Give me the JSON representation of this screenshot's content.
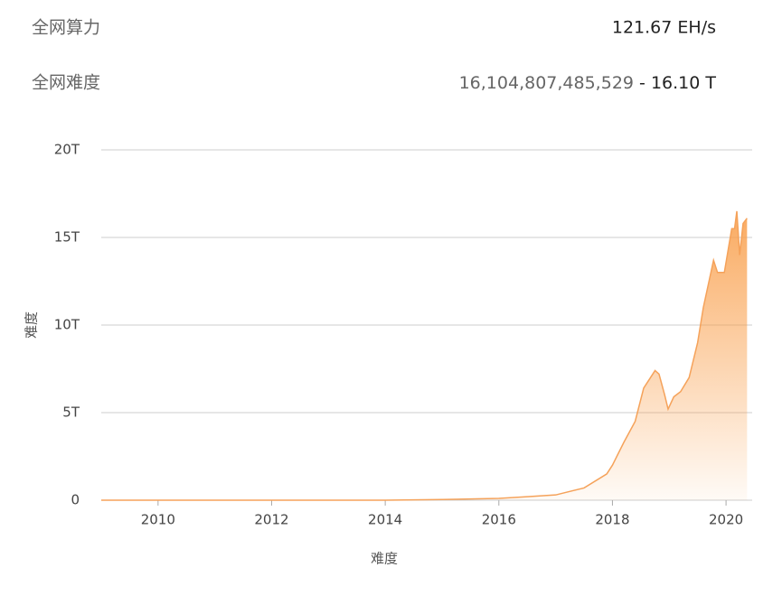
{
  "stats": [
    {
      "label": "全网算力",
      "value": "121.67 EH/s"
    },
    {
      "label": "全网难度",
      "value": "16,104,807,485,529",
      "separator": "-",
      "suffix": "16.10 T"
    }
  ],
  "chart_data": {
    "type": "area",
    "xlabel": "难度",
    "ylabel": "难度",
    "x": [
      2009,
      2011,
      2013,
      2014,
      2015,
      2016,
      2016.5,
      2017,
      2017.5,
      2017.9,
      2018,
      2018.2,
      2018.4,
      2018.55,
      2018.75,
      2018.82,
      2018.92,
      2018.98,
      2019.08,
      2019.2,
      2019.35,
      2019.5,
      2019.6,
      2019.78,
      2019.85,
      2019.97,
      2020.1,
      2020.15,
      2020.19,
      2020.24,
      2020.3,
      2020.37
    ],
    "series": [
      {
        "name": "难度",
        "color": "#f5a25a",
        "values": [
          0,
          0.0001,
          0.001,
          0.0015,
          0.04,
          0.1,
          0.2,
          0.3,
          0.7,
          1.5,
          2,
          3.3,
          4.5,
          6.4,
          7.4,
          7.2,
          6,
          5.2,
          5.9,
          6.2,
          7,
          9,
          11,
          13.7,
          13,
          13,
          15.5,
          15.5,
          16.5,
          14,
          15.8,
          16.1
        ]
      }
    ],
    "xlim": [
      2009,
      2020.46
    ],
    "xticks": [
      2010,
      2012,
      2014,
      2016,
      2018,
      2020
    ],
    "ylim": [
      0,
      20
    ],
    "yticks": [
      0,
      {
        "value": 5,
        "label": "5T"
      },
      {
        "value": 10,
        "label": "10T"
      },
      {
        "value": 15,
        "label": "15T"
      },
      {
        "value": 20,
        "label": "20T"
      }
    ],
    "grid": true
  }
}
